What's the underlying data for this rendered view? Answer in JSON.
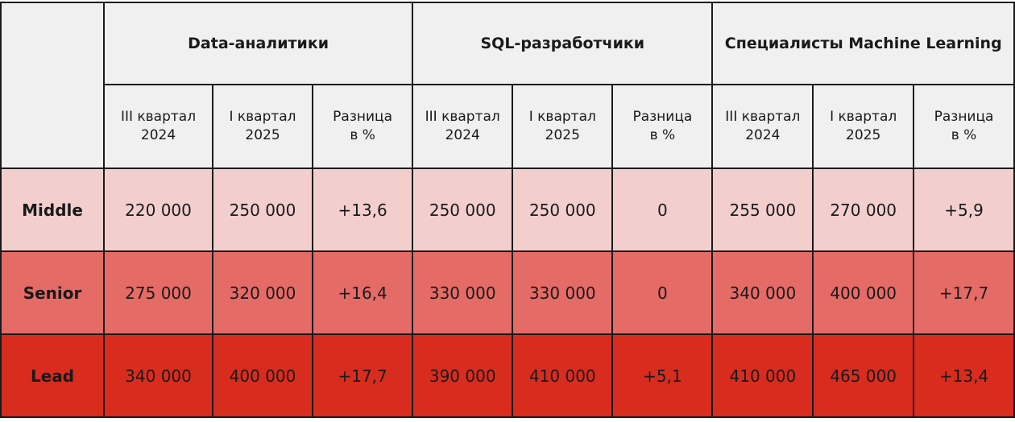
{
  "chart_data": {
    "type": "table",
    "groups": [
      "Data-аналитики",
      "SQL-разработчики",
      "Специалисты Machine Learning"
    ],
    "subheaders": [
      [
        "III квартал",
        "2024"
      ],
      [
        "I квартал",
        "2025"
      ],
      [
        "Разница",
        "в %"
      ]
    ],
    "rows": [
      {
        "label": "Middle",
        "color": "#f2cfcd",
        "values": [
          "220 000",
          "250 000",
          "+13,6",
          "250 000",
          "250 000",
          "0",
          "255 000",
          "270 000",
          "+5,9"
        ]
      },
      {
        "label": "Senior",
        "color": "#e56b67",
        "values": [
          "275 000",
          "320 000",
          "+16,4",
          "330 000",
          "330 000",
          "0",
          "340 000",
          "400 000",
          "+17,7"
        ]
      },
      {
        "label": "Lead",
        "color": "#d82c1f",
        "values": [
          "340 000",
          "400 000",
          "+17,7",
          "390 000",
          "410 000",
          "+5,1",
          "410 000",
          "465 000",
          "+13,4"
        ]
      }
    ]
  }
}
